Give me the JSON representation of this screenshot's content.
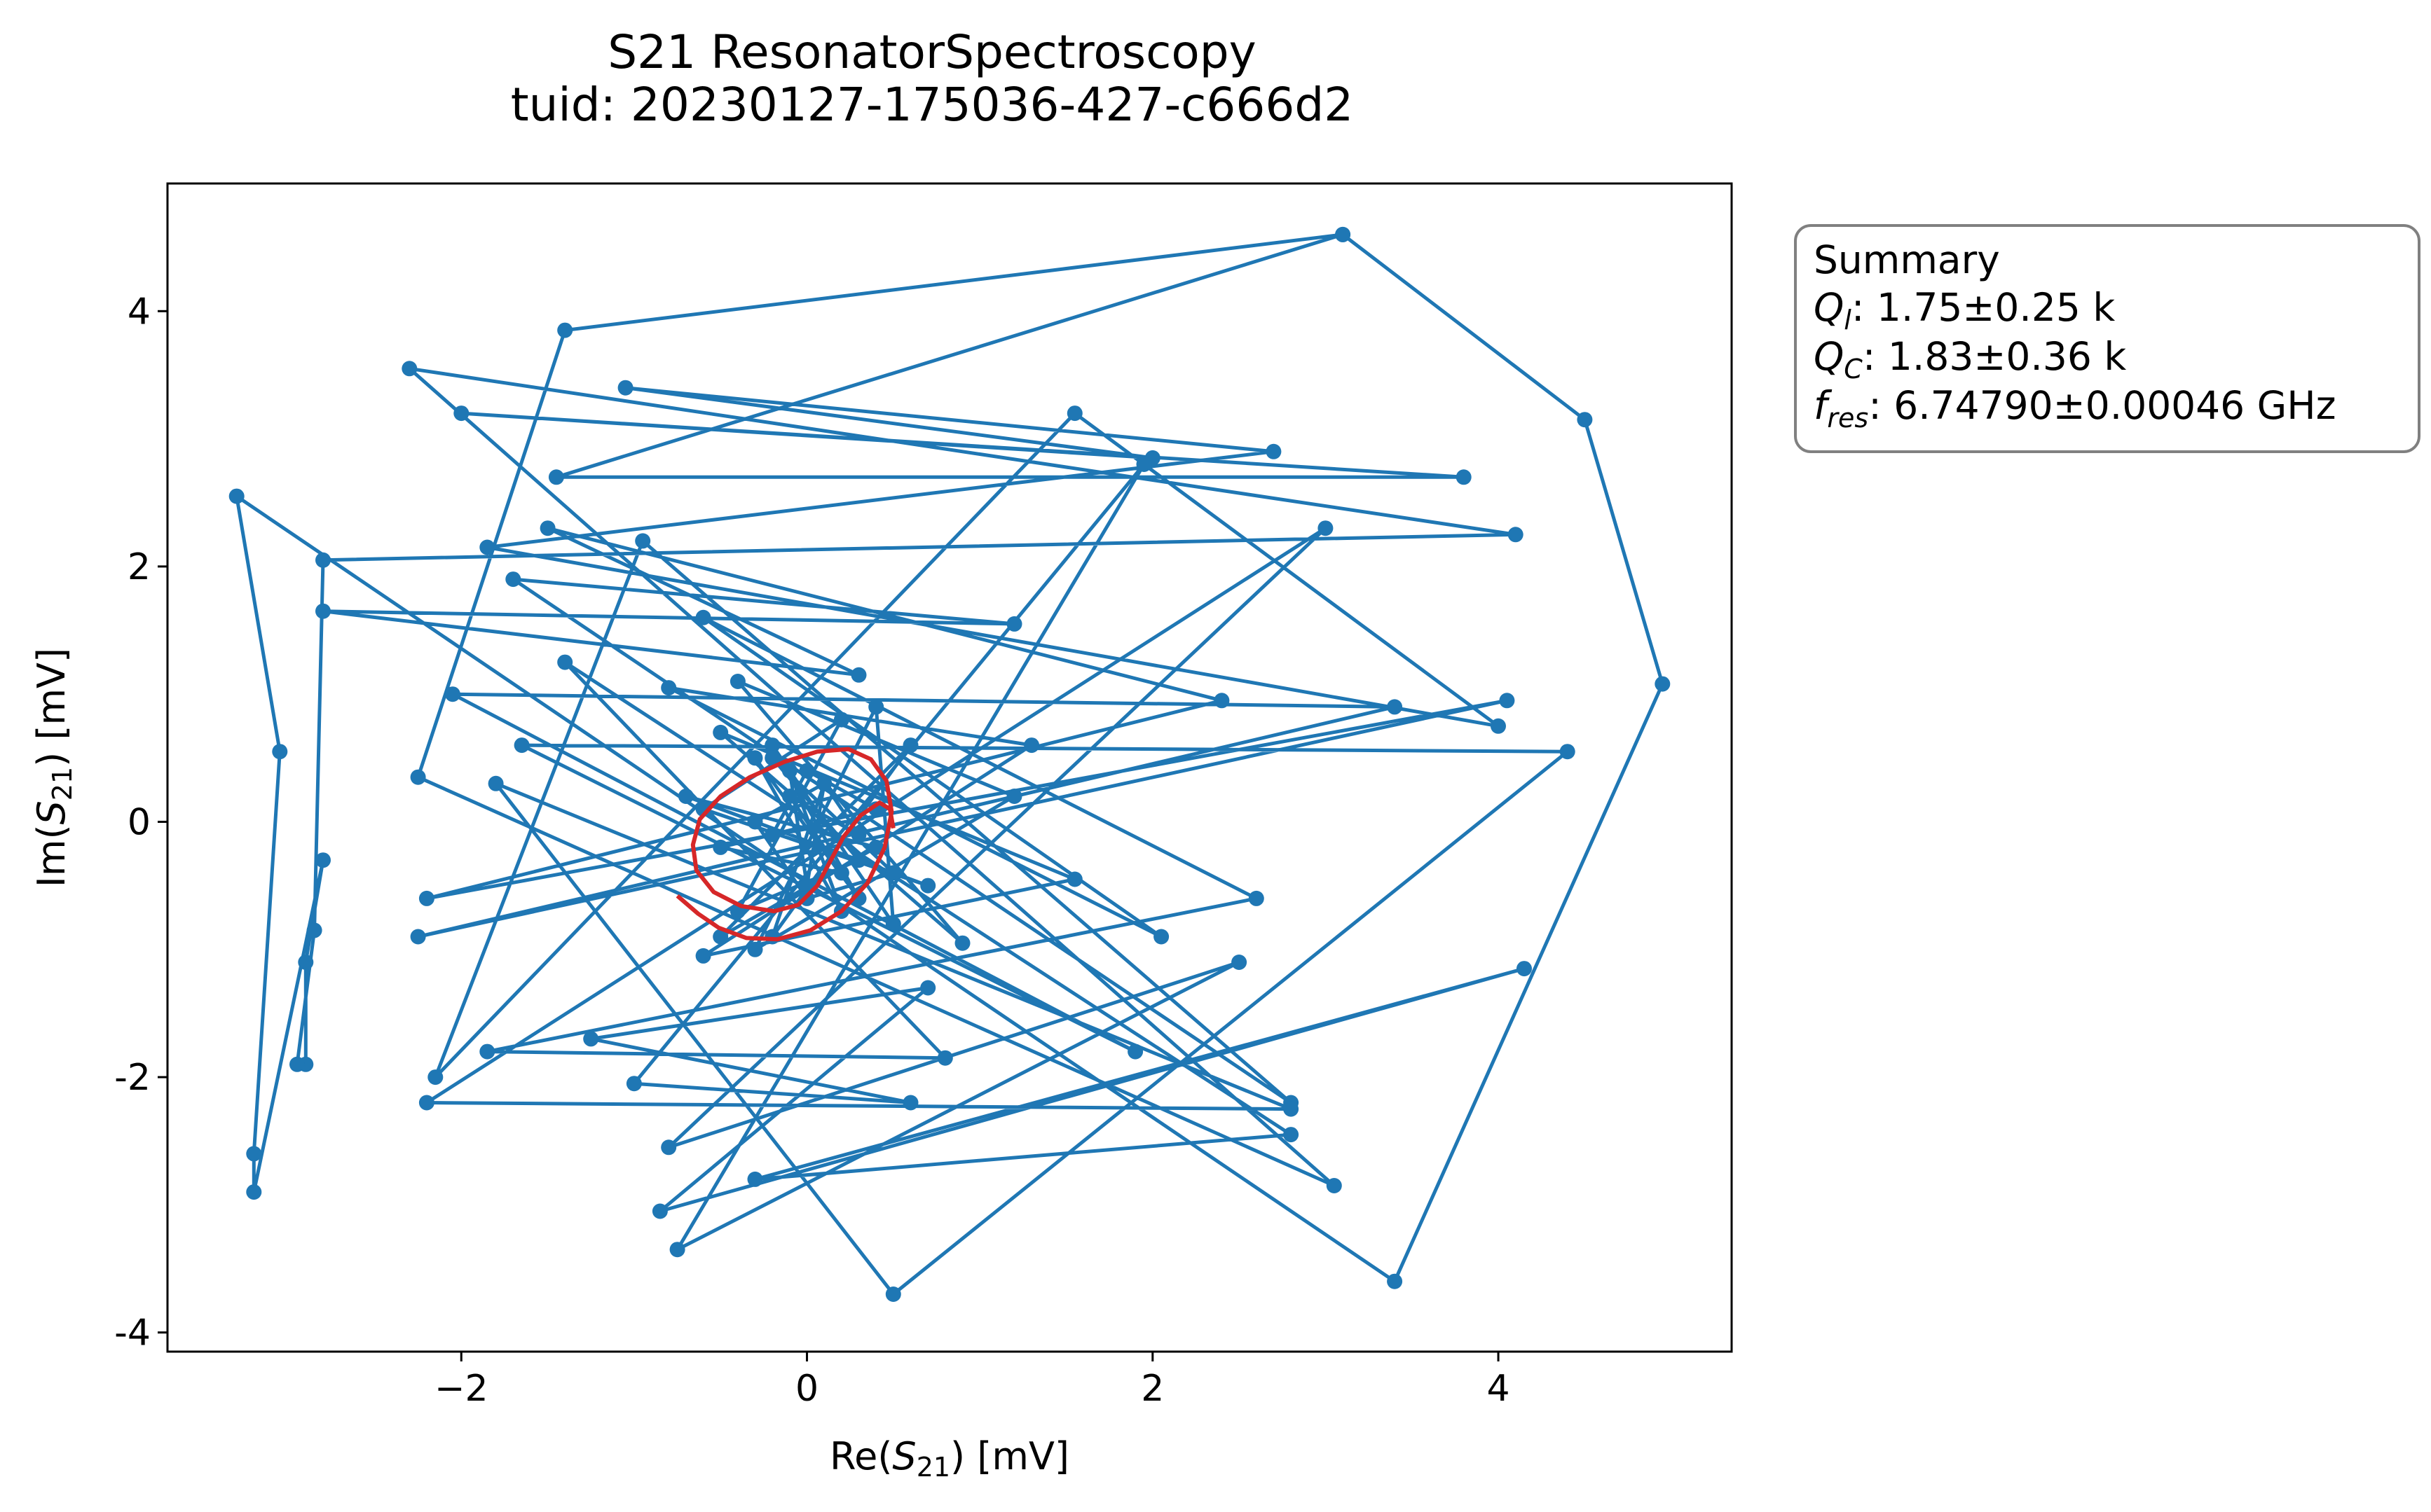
{
  "chart_data": {
    "type": "scatter",
    "title": "S21 ResonatorSpectroscopy",
    "subtitle": "tuid: 20230127-175036-427-c666d2",
    "xlabel": {
      "pre": "Re(",
      "sym": "S",
      "sub": "21",
      "post": ") [mV]"
    },
    "ylabel": {
      "pre": "Im(",
      "sym": "S",
      "sub": "21",
      "post": ") [mV]"
    },
    "xlim": [
      -3.7,
      5.35
    ],
    "ylim": [
      -4.15,
      5.0
    ],
    "xticks": [
      -2,
      0,
      2,
      4
    ],
    "yticks": [
      -4,
      -2,
      0,
      2,
      4
    ],
    "grid": false,
    "colors": {
      "data": "#1f77b4",
      "fit": "#d62728",
      "legend_border": "#808080"
    },
    "summary": {
      "heading": "Summary",
      "lines": [
        {
          "sym": "Q",
          "sub": "l",
          "text": ": 1.75±0.25 k"
        },
        {
          "sym": "Q",
          "sub": "C",
          "text": ": 1.83±0.36 k"
        },
        {
          "sym": "f",
          "sub": "res",
          "text": ": 6.74790±0.00046 GHz"
        }
      ],
      "placement": "upper-right-outside"
    },
    "series": [
      {
        "style": "line-with-markers",
        "x": [
          3.1,
          4.5,
          4.95,
          3.4,
          -3.3,
          -3.05,
          -3.2,
          -3.2,
          -2.8,
          -2.9,
          -2.9,
          -2.95,
          -2.85,
          -2.8,
          4.1,
          -2.3,
          3.05,
          -2.25,
          -1.4,
          3.1,
          -1.45,
          3.8,
          -2.0,
          2.0,
          -1.05,
          2.7,
          -1.85,
          4.0,
          1.55,
          -2.15,
          -0.95,
          2.8,
          -1.7,
          1.2,
          -2.8,
          0.3,
          -1.5,
          2.4,
          -2.2,
          4.05,
          -2.25,
          3.4,
          -2.05,
          1.9,
          -1.65,
          4.4,
          0.5,
          -1.8,
          2.8,
          -2.2,
          3.0,
          -0.8,
          2.5,
          -0.75,
          1.95,
          -1.0,
          0.6,
          -1.25,
          0.7,
          -0.85,
          4.15,
          -0.3,
          2.8,
          -1.4,
          0.8,
          -1.85,
          2.6,
          -0.6,
          2.05,
          -0.8,
          1.3,
          -0.6,
          1.55,
          -0.5,
          0.9,
          -0.4,
          1.2,
          -0.3,
          0.4,
          0.5,
          -0.2,
          0.3,
          -0.3,
          0.2,
          -0.1,
          0.0,
          0.1,
          -0.2,
          0.6,
          -0.5,
          0.4,
          -0.7,
          0.7,
          -0.6,
          0.2,
          -0.4,
          0.3,
          -0.2,
          0.5,
          0.0,
          -0.3,
          0.1,
          0.3,
          -0.1,
          0.2,
          -0.5,
          0.4,
          0.0,
          -0.2
        ],
        "y": [
          4.6,
          3.15,
          1.08,
          -3.6,
          2.55,
          0.55,
          -2.6,
          -2.9,
          -0.3,
          -1.1,
          -1.9,
          -1.9,
          -0.85,
          2.05,
          2.25,
          3.55,
          -2.85,
          0.35,
          3.85,
          4.6,
          2.7,
          2.7,
          3.2,
          2.85,
          3.4,
          2.9,
          2.15,
          0.75,
          3.2,
          -2.0,
          2.2,
          -2.2,
          1.9,
          1.55,
          1.65,
          1.15,
          2.3,
          0.95,
          -0.6,
          0.95,
          -0.9,
          0.9,
          1.0,
          -1.8,
          0.6,
          0.55,
          -3.7,
          0.3,
          -2.25,
          -2.2,
          2.3,
          -2.55,
          -1.1,
          -3.35,
          2.8,
          -2.05,
          -2.2,
          -1.7,
          -1.3,
          -3.05,
          -1.15,
          -2.8,
          -2.45,
          1.25,
          -1.85,
          -1.8,
          -0.6,
          1.6,
          -0.9,
          1.05,
          0.6,
          -1.05,
          -0.45,
          0.7,
          -0.95,
          1.1,
          0.2,
          -1.0,
          0.9,
          -0.8,
          0.6,
          -0.6,
          0.5,
          -0.7,
          0.4,
          -0.5,
          0.3,
          -0.9,
          0.6,
          -0.9,
          -0.2,
          0.2,
          -0.5,
          0.1,
          0.8,
          -0.7,
          -0.3,
          0.5,
          -0.4,
          -0.6,
          0.0,
          0.3,
          -0.1,
          0.2,
          -0.4,
          -0.2,
          0.1,
          0.4,
          -0.1
        ]
      },
      {
        "style": "fit-line",
        "x": [
          -0.75,
          -0.63,
          -0.51,
          -0.35,
          -0.17,
          0.02,
          0.2,
          0.35,
          0.45,
          0.49,
          0.46,
          0.37,
          0.24,
          0.06,
          -0.13,
          -0.33,
          -0.5,
          -0.62,
          -0.66,
          -0.64,
          -0.54,
          -0.38,
          -0.19,
          -0.05,
          0.06,
          0.13,
          0.21,
          0.31,
          0.42,
          0.48,
          0.5
        ],
        "y": [
          -0.58,
          -0.72,
          -0.83,
          -0.91,
          -0.92,
          -0.85,
          -0.7,
          -0.48,
          -0.2,
          0.08,
          0.32,
          0.49,
          0.57,
          0.55,
          0.47,
          0.35,
          0.2,
          0.02,
          -0.18,
          -0.38,
          -0.55,
          -0.66,
          -0.7,
          -0.65,
          -0.5,
          -0.32,
          -0.12,
          0.05,
          0.15,
          0.1,
          -0.05
        ]
      }
    ]
  }
}
